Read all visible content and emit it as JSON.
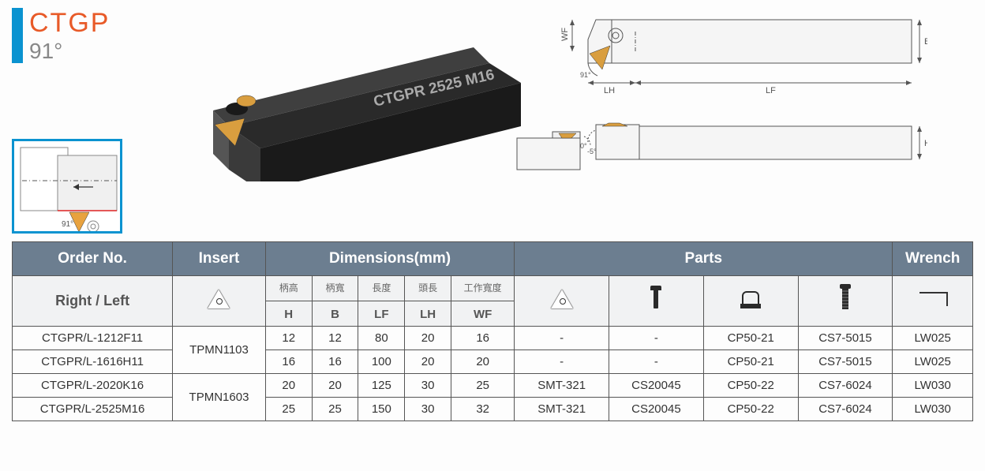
{
  "title": "CTGP",
  "angle": "91°",
  "render_label": "CTGPR 2525 M16",
  "diagram_labels": {
    "wf": "WF",
    "b": "B",
    "lh": "LH",
    "lf": "LF",
    "h": "H",
    "angle_small": "91°",
    "cut_angle": "-5°",
    "side_angle": "0°"
  },
  "colors": {
    "brand_bar": "#0b93d0",
    "title": "#e85a28",
    "header_bg": "#6c7e90",
    "grid": "#555555",
    "insert_gold": "#d99e3f",
    "tool_dark": "#2a2a2a"
  },
  "table": {
    "headers": {
      "order": "Order No.",
      "insert": "Insert",
      "dimensions": "Dimensions(mm)",
      "parts": "Parts",
      "wrench": "Wrench",
      "right_left": "Right / Left"
    },
    "dim_labels": [
      {
        "cn": "柄高",
        "code": "H"
      },
      {
        "cn": "柄寬",
        "code": "B"
      },
      {
        "cn": "長度",
        "code": "LF"
      },
      {
        "cn": "頭長",
        "code": "LH"
      },
      {
        "cn": "工作寬度",
        "code": "WF"
      }
    ],
    "rows": [
      {
        "order": "CTGPR/L-1212F11",
        "insert": "TPMN1103",
        "insert_rowspan": 2,
        "dims": [
          "12",
          "12",
          "80",
          "20",
          "16"
        ],
        "parts": [
          "-",
          "-",
          "CP50-21",
          "CS7-5015"
        ],
        "wrench": "LW025"
      },
      {
        "order": "CTGPR/L-1616H11",
        "dims": [
          "16",
          "16",
          "100",
          "20",
          "20"
        ],
        "parts": [
          "-",
          "-",
          "CP50-21",
          "CS7-5015"
        ],
        "wrench": "LW025"
      },
      {
        "order": "CTGPR/L-2020K16",
        "insert": "TPMN1603",
        "insert_rowspan": 2,
        "dims": [
          "20",
          "20",
          "125",
          "30",
          "25"
        ],
        "parts": [
          "SMT-321",
          "CS20045",
          "CP50-22",
          "CS7-6024"
        ],
        "wrench": "LW030"
      },
      {
        "order": "CTGPR/L-2525M16",
        "dims": [
          "25",
          "25",
          "150",
          "30",
          "32"
        ],
        "parts": [
          "SMT-321",
          "CS20045",
          "CP50-22",
          "CS7-6024"
        ],
        "wrench": "LW030"
      }
    ]
  }
}
